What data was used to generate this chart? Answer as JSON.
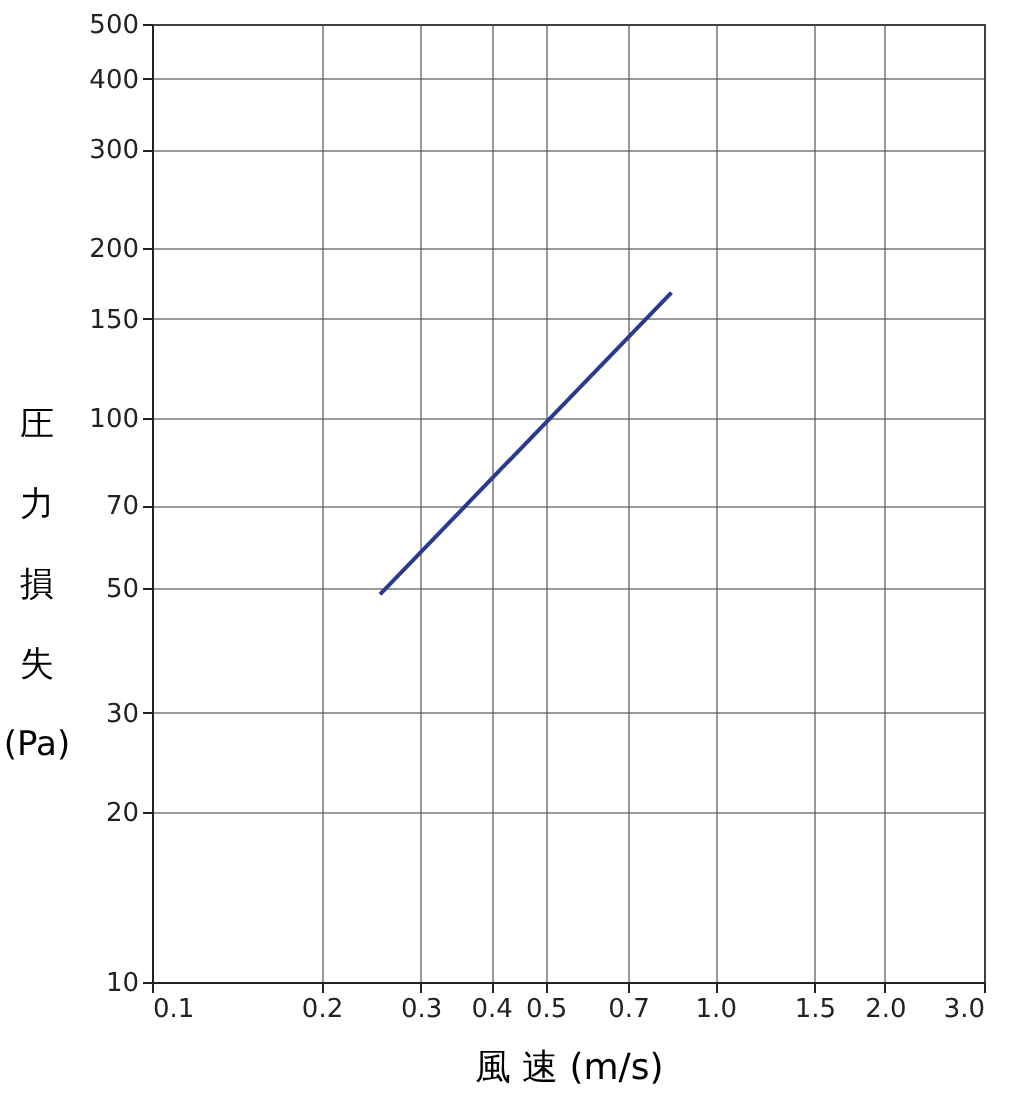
{
  "chart_data": {
    "type": "line",
    "xlabel": "風 速 (m/s)",
    "ylabel": "圧力損失(Pa)",
    "log": "xy",
    "grid": true,
    "xlim": [
      0.1,
      3.0
    ],
    "ylim": [
      10,
      500
    ],
    "xticks": [
      {
        "value": 0.1,
        "label": "0.1"
      },
      0.2,
      0.3,
      0.4,
      0.5,
      0.7,
      {
        "value": 1,
        "label": "1.0"
      },
      1.5,
      {
        "value": 2,
        "label": "2.0"
      },
      {
        "value": 3,
        "label": "3.0"
      }
    ],
    "yticks": [
      10,
      20,
      30,
      50,
      70,
      100,
      150,
      200,
      300,
      400,
      500
    ],
    "x": [
      0.254,
      0.836
    ],
    "series": [
      {
        "color": "#2b3a8c",
        "values": [
          48.7,
          167
        ]
      }
    ]
  }
}
